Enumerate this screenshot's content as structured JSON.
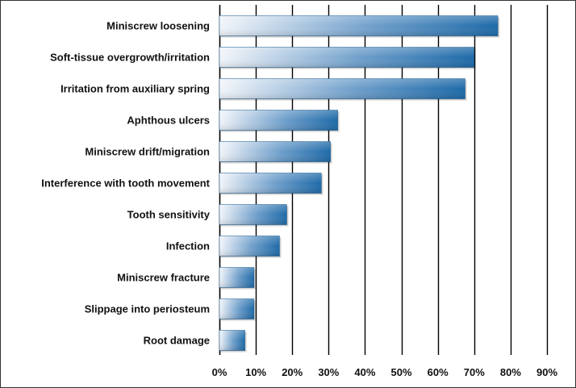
{
  "chart_data": {
    "type": "bar",
    "orientation": "horizontal",
    "title": "",
    "xlabel": "",
    "ylabel": "",
    "categories": [
      "Miniscrew loosening",
      "Soft-tissue overgrowth/irritation",
      "Irritation from auxiliary spring",
      "Aphthous ulcers",
      "Miniscrew drift/migration",
      "Interference with tooth movement",
      "Tooth sensitivity",
      "Infection",
      "Miniscrew fracture",
      "Slippage into periosteum",
      "Root damage"
    ],
    "values": [
      76.5,
      70,
      67.5,
      32.5,
      30.5,
      28,
      18.5,
      16.5,
      9.5,
      9.5,
      7
    ],
    "xlim": [
      0,
      90
    ],
    "xticks": [
      0,
      10,
      20,
      30,
      40,
      50,
      60,
      70,
      80,
      90
    ],
    "tick_labels": [
      "0%",
      "10%",
      "20%",
      "30%",
      "40%",
      "50%",
      "60%",
      "70%",
      "80%",
      "90%"
    ],
    "grid": true,
    "legend": "none",
    "colors": {
      "bar_start": "#f2f5fa",
      "bar_end": "#1e6aa8",
      "gridline": "#000000",
      "text": "#111111",
      "background": "#ffffff"
    }
  }
}
